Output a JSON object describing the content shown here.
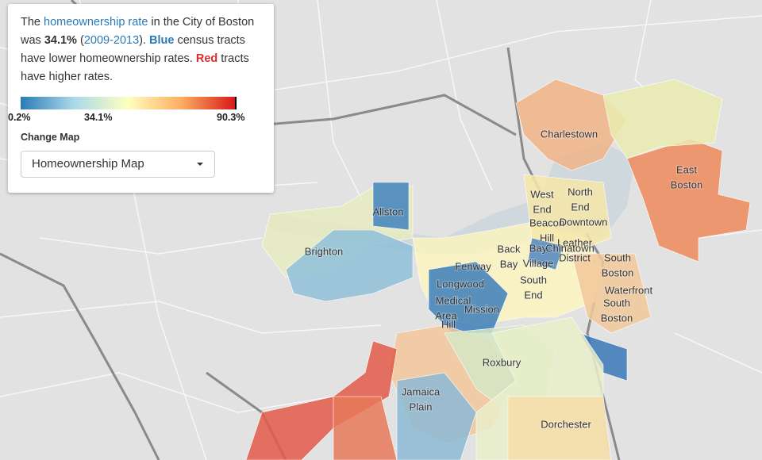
{
  "info": {
    "intro": [
      "The ",
      "homeownership rate",
      " in the City of Boston was ",
      "34.1%",
      " (",
      "2009-2013",
      "). ",
      "Blue",
      " census tracts have lower homeownership rates. ",
      "Red",
      " tracts have higher rates."
    ],
    "legend": {
      "min": "0.2%",
      "mid": "34.1%",
      "max": "90.3%"
    },
    "change_label": "Change Map",
    "select": "Homeownership Map"
  },
  "map": {
    "labels": [
      [
        "Charlestown"
      ],
      [
        "East",
        "Boston"
      ],
      [
        "Allston"
      ],
      [
        "Brighton"
      ],
      [
        "West",
        "End"
      ],
      [
        "North",
        "End"
      ],
      [
        "Beacon",
        "Hill"
      ],
      [
        "Downtown"
      ],
      [
        "Leather",
        "District"
      ],
      [
        "Back",
        "Bay"
      ],
      [
        "Bay",
        "Village"
      ],
      [
        "Chinatown"
      ],
      [
        "South",
        "Boston"
      ],
      [
        "South",
        "End"
      ],
      [
        "Fenway"
      ],
      [
        "Longwood"
      ],
      [
        "Medical",
        "Area"
      ],
      [
        "Mission",
        "Hill"
      ],
      [
        "Waterfront"
      ],
      [
        "South",
        "Boston"
      ],
      [
        "Roxbury"
      ],
      [
        "Jamaica",
        "Plain"
      ],
      [
        "Dorchester"
      ]
    ]
  }
}
